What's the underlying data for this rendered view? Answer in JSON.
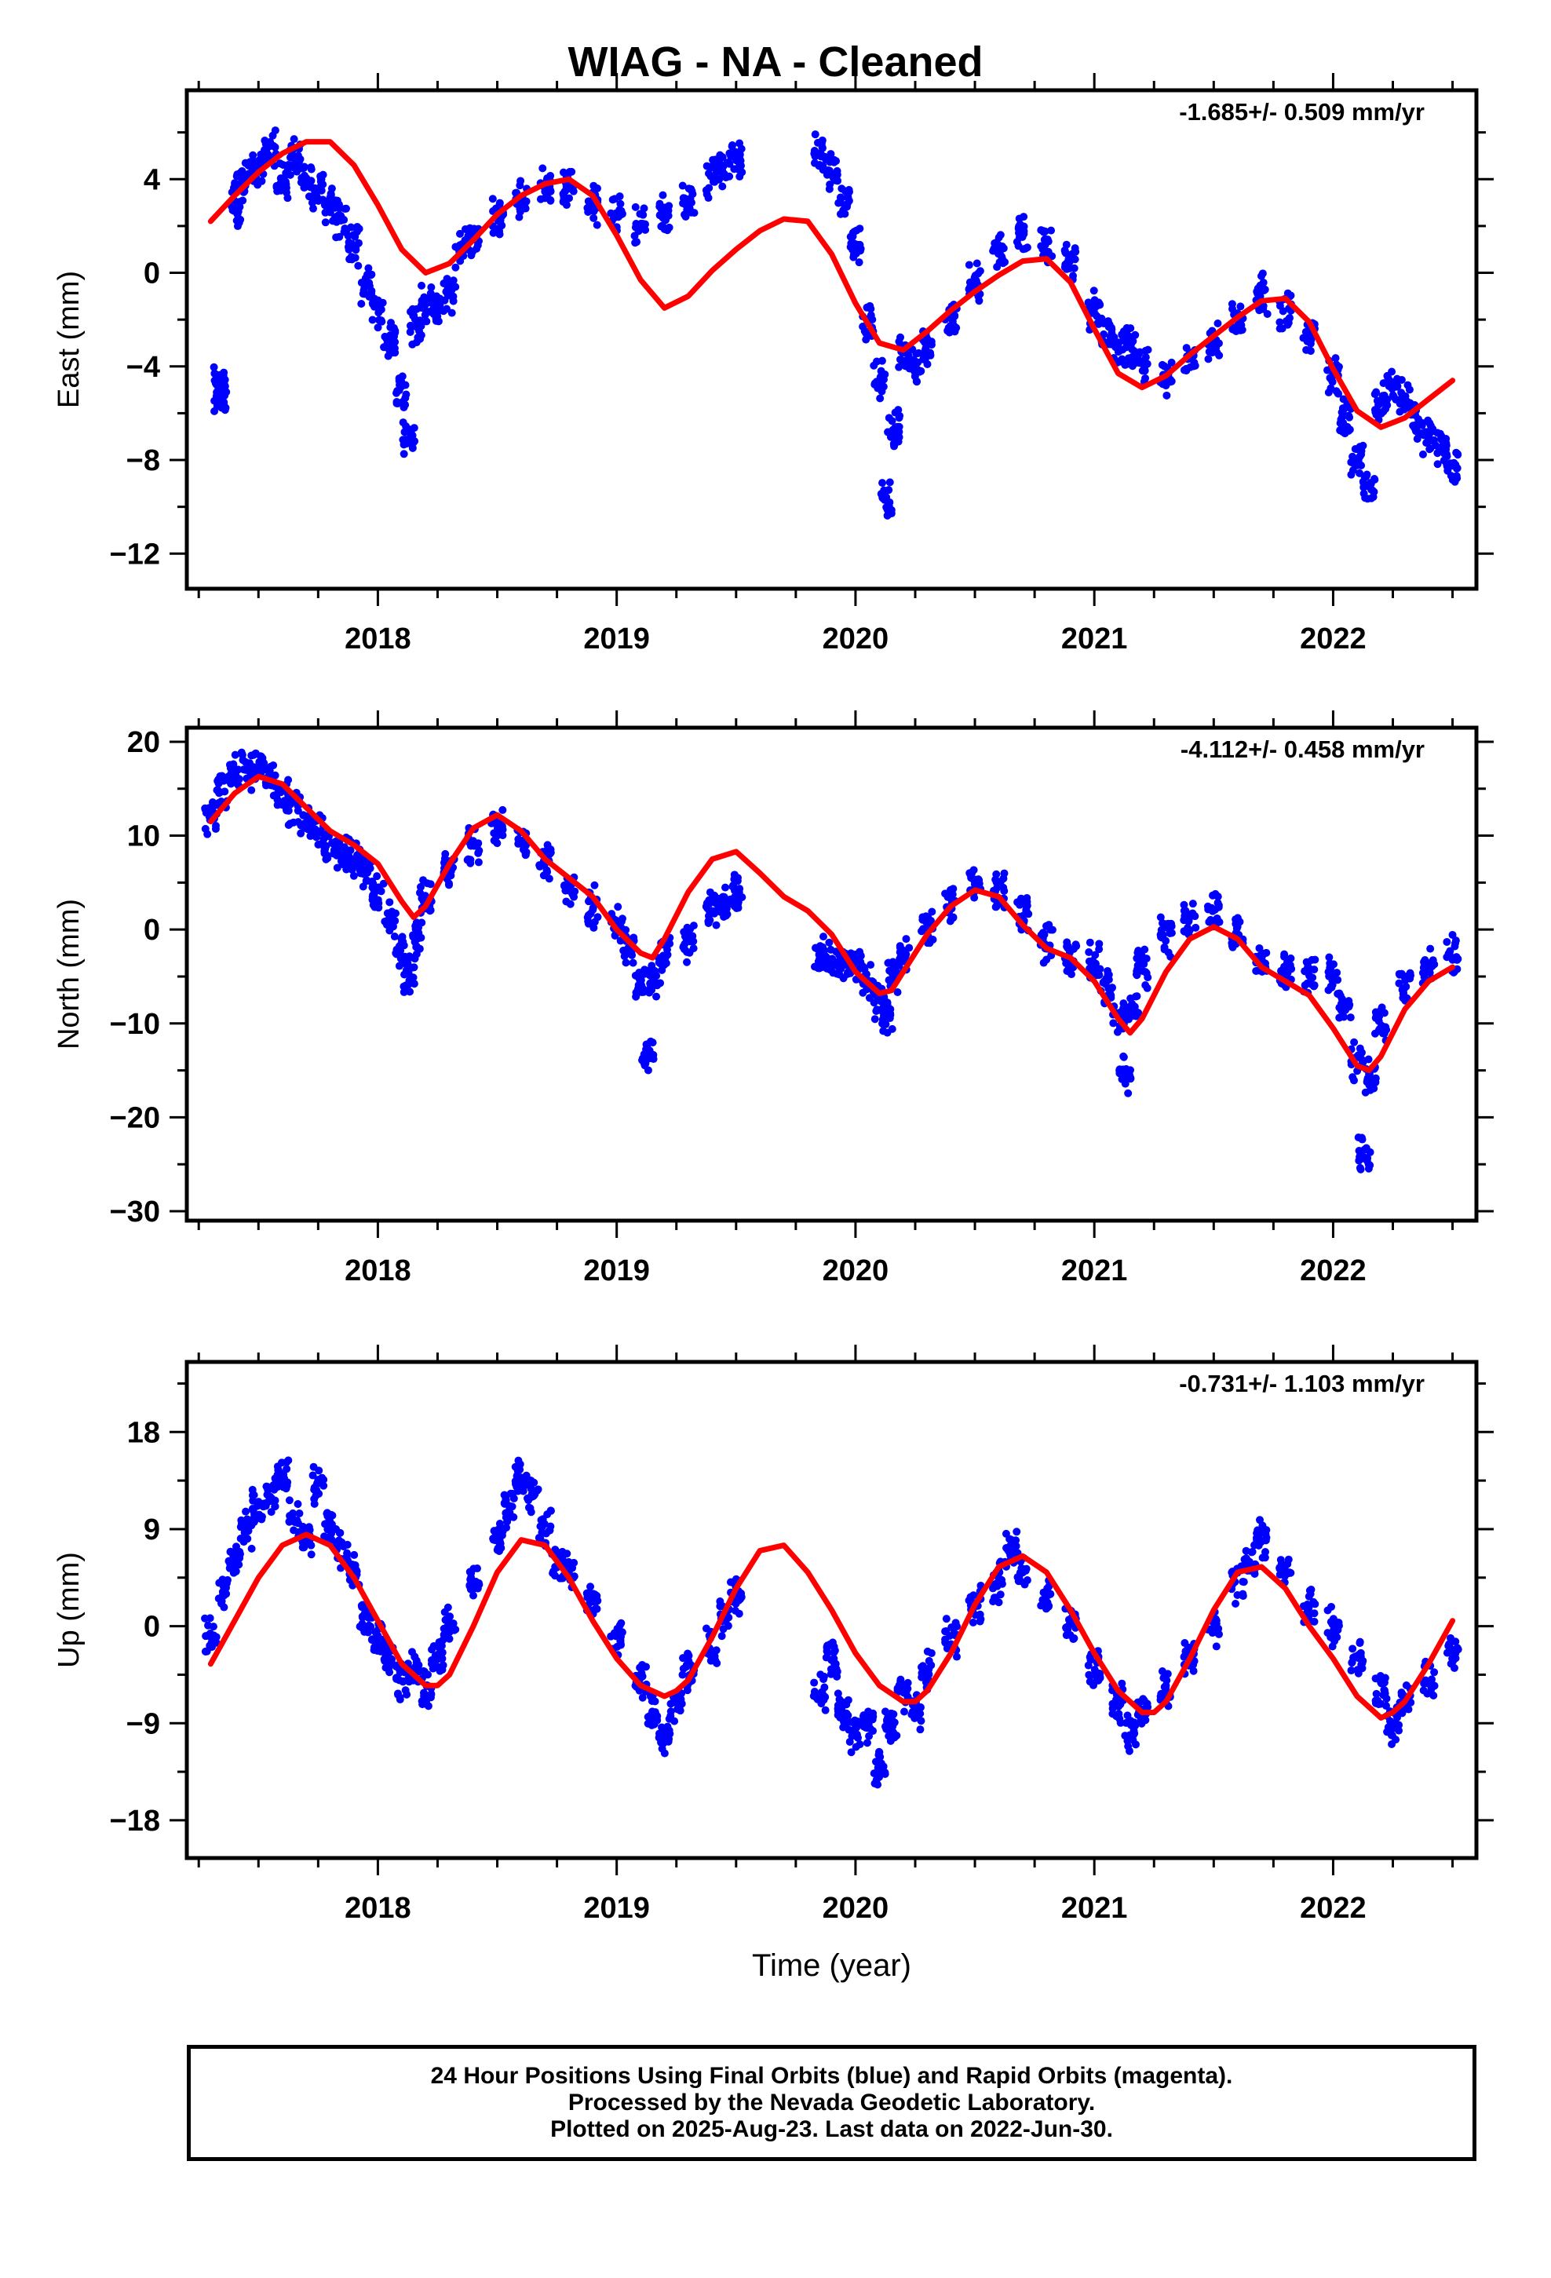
{
  "title": "WIAG  - NA - Cleaned",
  "footer": {
    "line1": "24 Hour Positions Using Final Orbits (blue) and Rapid Orbits (magenta).",
    "line2": "Processed by the Nevada Geodetic Laboratory.",
    "line3": "Plotted on 2025-Aug-23. Last data on 2022-Jun-30."
  },
  "colors": {
    "points": "#0000ff",
    "fit": "#ff0000",
    "axes": "#000000"
  },
  "chart_data": [
    {
      "type": "scatter",
      "title": "",
      "xlabel": "",
      "ylabel": "East (mm)",
      "annotation": "-1.685+/- 0.509 mm/yr",
      "xlim": [
        2017.2,
        2022.6
      ],
      "ylim": [
        -13.5,
        7.8
      ],
      "xticks": [
        2018,
        2019,
        2020,
        2021,
        2022
      ],
      "yticks": [
        4,
        0,
        -4,
        -8,
        -12
      ],
      "series": [
        {
          "kind": "points",
          "x": [
            2017.33,
            2017.34,
            2017.35,
            2017.4,
            2017.42,
            2017.45,
            2017.5,
            2017.55,
            2017.6,
            2017.65,
            2017.7,
            2017.75,
            2017.8,
            2017.85,
            2017.9,
            2017.95,
            2018.0,
            2018.05,
            2018.1,
            2018.13,
            2018.16,
            2018.2,
            2018.25,
            2018.3,
            2018.35,
            2018.4,
            2018.5,
            2018.6,
            2018.7,
            2018.8,
            2018.9,
            2019.0,
            2019.1,
            2019.2,
            2019.3,
            2019.4,
            2019.45,
            2019.5,
            2019.85,
            2019.9,
            2019.95,
            2020.0,
            2020.05,
            2020.1,
            2020.13,
            2020.16,
            2020.2,
            2020.25,
            2020.3,
            2020.4,
            2020.5,
            2020.6,
            2020.7,
            2020.8,
            2020.9,
            2021.0,
            2021.05,
            2021.1,
            2021.15,
            2021.2,
            2021.3,
            2021.4,
            2021.5,
            2021.6,
            2021.7,
            2021.8,
            2021.9,
            2022.0,
            2022.05,
            2022.1,
            2022.15,
            2022.2,
            2022.25,
            2022.3,
            2022.35,
            2022.4,
            2022.45,
            2022.5
          ],
          "y": [
            -4.6,
            -5.5,
            -4.9,
            2.8,
            3.6,
            4.2,
            4.6,
            5.2,
            4.0,
            4.8,
            3.9,
            3.5,
            3.0,
            2.4,
            1.2,
            -0.6,
            -1.6,
            -2.8,
            -5.2,
            -6.9,
            -2.2,
            -1.3,
            -1.6,
            -0.9,
            1.0,
            1.6,
            2.4,
            3.2,
            3.7,
            3.6,
            2.9,
            2.7,
            2.0,
            2.6,
            3.0,
            4.1,
            4.3,
            5.0,
            5.0,
            4.3,
            3.0,
            1.2,
            -2.3,
            -4.6,
            -9.7,
            -6.7,
            -3.6,
            -3.8,
            -3.2,
            -1.9,
            -0.4,
            1.0,
            1.6,
            1.2,
            0.4,
            -1.6,
            -2.6,
            -3.1,
            -3.2,
            -3.8,
            -4.6,
            -3.6,
            -3.0,
            -1.9,
            -0.9,
            -1.6,
            -2.7,
            -4.4,
            -6.1,
            -8.1,
            -9.1,
            -5.5,
            -4.9,
            -5.4,
            -6.3,
            -7.0,
            -7.4,
            -8.2
          ]
        },
        {
          "kind": "line",
          "x": [
            2017.3,
            2017.4,
            2017.5,
            2017.6,
            2017.7,
            2017.8,
            2017.9,
            2018.0,
            2018.1,
            2018.2,
            2018.3,
            2018.4,
            2018.5,
            2018.6,
            2018.7,
            2018.8,
            2018.9,
            2019.0,
            2019.1,
            2019.2,
            2019.3,
            2019.4,
            2019.5,
            2019.6,
            2019.7,
            2019.8,
            2019.9,
            2020.0,
            2020.1,
            2020.2,
            2020.3,
            2020.4,
            2020.5,
            2020.6,
            2020.7,
            2020.8,
            2020.9,
            2021.0,
            2021.1,
            2021.2,
            2021.3,
            2021.4,
            2021.5,
            2021.6,
            2021.7,
            2021.8,
            2021.9,
            2022.0,
            2022.1,
            2022.2,
            2022.3,
            2022.4,
            2022.5
          ],
          "y": [
            2.2,
            3.3,
            4.3,
            5.1,
            5.6,
            5.6,
            4.6,
            2.9,
            1.0,
            0.0,
            0.4,
            1.4,
            2.5,
            3.3,
            3.8,
            4.0,
            3.3,
            1.6,
            -0.3,
            -1.5,
            -1.0,
            0.1,
            1.0,
            1.8,
            2.3,
            2.2,
            0.8,
            -1.3,
            -3.0,
            -3.3,
            -2.5,
            -1.6,
            -0.8,
            -0.1,
            0.5,
            0.6,
            -0.4,
            -2.4,
            -4.3,
            -4.9,
            -4.4,
            -3.5,
            -2.7,
            -1.9,
            -1.2,
            -1.1,
            -2.1,
            -4.1,
            -5.9,
            -6.6,
            -6.2,
            -5.4,
            -4.6
          ]
        }
      ]
    },
    {
      "type": "scatter",
      "title": "",
      "xlabel": "",
      "ylabel": "North (mm)",
      "annotation": "-4.112+/- 0.458 mm/yr",
      "xlim": [
        2017.2,
        2022.6
      ],
      "ylim": [
        -31,
        21.5
      ],
      "xticks": [
        2018,
        2019,
        2020,
        2021,
        2022
      ],
      "yticks": [
        20,
        10,
        0,
        -10,
        -20,
        -30
      ],
      "series": [
        {
          "kind": "points",
          "x": [
            2017.3,
            2017.35,
            2017.4,
            2017.45,
            2017.5,
            2017.55,
            2017.6,
            2017.65,
            2017.7,
            2017.75,
            2017.8,
            2017.85,
            2017.9,
            2017.95,
            2018.0,
            2018.05,
            2018.1,
            2018.13,
            2018.16,
            2018.2,
            2018.3,
            2018.4,
            2018.5,
            2018.6,
            2018.7,
            2018.8,
            2018.9,
            2019.0,
            2019.05,
            2019.1,
            2019.13,
            2019.16,
            2019.2,
            2019.3,
            2019.4,
            2019.45,
            2019.5,
            2019.85,
            2019.9,
            2019.95,
            2020.0,
            2020.05,
            2020.1,
            2020.13,
            2020.16,
            2020.2,
            2020.3,
            2020.4,
            2020.5,
            2020.6,
            2020.7,
            2020.8,
            2020.9,
            2021.0,
            2021.05,
            2021.1,
            2021.13,
            2021.16,
            2021.2,
            2021.3,
            2021.4,
            2021.5,
            2021.6,
            2021.7,
            2021.8,
            2021.9,
            2022.0,
            2022.05,
            2022.1,
            2022.13,
            2022.16,
            2022.2,
            2022.3,
            2022.4,
            2022.5
          ],
          "y": [
            12.0,
            14.5,
            16.5,
            17.0,
            17.5,
            16.0,
            14.5,
            13.0,
            11.5,
            10.5,
            9.0,
            8.0,
            7.5,
            6.5,
            4.0,
            1.0,
            -2.0,
            -5.0,
            -1.0,
            3.0,
            6.5,
            9.0,
            11.0,
            10.0,
            7.0,
            4.5,
            2.5,
            0.5,
            -2.0,
            -6.0,
            -13.0,
            -5.0,
            -2.5,
            -1.5,
            2.0,
            3.0,
            4.0,
            -3.0,
            -3.5,
            -4.0,
            -3.5,
            -5.0,
            -7.5,
            -9.5,
            -5.0,
            -3.0,
            0.0,
            2.5,
            4.5,
            4.0,
            1.5,
            -1.5,
            -2.5,
            -3.5,
            -6.0,
            -9.5,
            -15.5,
            -8.5,
            -4.0,
            -1.0,
            1.5,
            2.0,
            -0.5,
            -3.0,
            -4.5,
            -5.0,
            -5.0,
            -8.5,
            -14.0,
            -24.0,
            -16.0,
            -10.0,
            -6.0,
            -4.0,
            -2.5
          ]
        },
        {
          "kind": "line",
          "x": [
            2017.3,
            2017.4,
            2017.5,
            2017.6,
            2017.7,
            2017.8,
            2017.9,
            2018.0,
            2018.1,
            2018.15,
            2018.2,
            2018.3,
            2018.4,
            2018.5,
            2018.6,
            2018.7,
            2018.8,
            2018.9,
            2019.0,
            2019.1,
            2019.15,
            2019.2,
            2019.3,
            2019.4,
            2019.5,
            2019.6,
            2019.7,
            2019.8,
            2019.9,
            2020.0,
            2020.1,
            2020.15,
            2020.2,
            2020.3,
            2020.4,
            2020.5,
            2020.6,
            2020.7,
            2020.8,
            2020.9,
            2021.0,
            2021.1,
            2021.15,
            2021.2,
            2021.3,
            2021.4,
            2021.5,
            2021.6,
            2021.7,
            2021.8,
            2021.9,
            2022.0,
            2022.1,
            2022.15,
            2022.2,
            2022.3,
            2022.4,
            2022.5
          ],
          "y": [
            11.5,
            14.5,
            16.3,
            15.5,
            13.0,
            10.5,
            9.0,
            7.0,
            3.0,
            1.3,
            2.5,
            7.0,
            10.8,
            12.2,
            10.5,
            7.5,
            5.5,
            3.5,
            0.0,
            -2.5,
            -3.0,
            -1.0,
            4.0,
            7.5,
            8.3,
            6.0,
            3.5,
            2.0,
            -0.5,
            -4.5,
            -6.8,
            -6.5,
            -4.5,
            -0.5,
            2.5,
            4.2,
            3.5,
            0.5,
            -2.0,
            -3.0,
            -5.5,
            -9.5,
            -11.0,
            -9.5,
            -4.5,
            -1.0,
            0.3,
            -1.0,
            -4.0,
            -5.5,
            -7.0,
            -10.5,
            -14.5,
            -15.0,
            -13.5,
            -8.5,
            -5.5,
            -4.0
          ]
        }
      ]
    },
    {
      "type": "scatter",
      "title": "",
      "xlabel": "Time (year)",
      "ylabel": "Up (mm)",
      "annotation": "-0.731+/- 1.103 mm/yr",
      "xlim": [
        2017.2,
        2022.6
      ],
      "ylim": [
        -21.5,
        24.5
      ],
      "xticks": [
        2018,
        2019,
        2020,
        2021,
        2022
      ],
      "yticks": [
        18,
        9,
        0,
        -9,
        -18
      ],
      "series": [
        {
          "kind": "points",
          "x": [
            2017.3,
            2017.35,
            2017.4,
            2017.45,
            2017.5,
            2017.55,
            2017.6,
            2017.65,
            2017.7,
            2017.75,
            2017.8,
            2017.85,
            2017.9,
            2017.95,
            2018.0,
            2018.05,
            2018.1,
            2018.15,
            2018.2,
            2018.25,
            2018.3,
            2018.4,
            2018.5,
            2018.55,
            2018.6,
            2018.65,
            2018.7,
            2018.75,
            2018.8,
            2018.9,
            2019.0,
            2019.1,
            2019.15,
            2019.2,
            2019.25,
            2019.3,
            2019.4,
            2019.45,
            2019.5,
            2019.85,
            2019.9,
            2019.95,
            2020.0,
            2020.05,
            2020.1,
            2020.15,
            2020.2,
            2020.25,
            2020.3,
            2020.4,
            2020.5,
            2020.6,
            2020.65,
            2020.7,
            2020.8,
            2020.9,
            2021.0,
            2021.1,
            2021.15,
            2021.2,
            2021.3,
            2021.4,
            2021.5,
            2021.6,
            2021.65,
            2021.7,
            2021.8,
            2021.9,
            2022.0,
            2022.1,
            2022.2,
            2022.25,
            2022.3,
            2022.4,
            2022.5
          ],
          "y": [
            -1.0,
            3.0,
            6.0,
            9.0,
            11.0,
            12.0,
            14.0,
            10.0,
            8.0,
            13.0,
            9.0,
            7.0,
            5.0,
            1.0,
            -1.0,
            -3.0,
            -5.0,
            -4.0,
            -6.0,
            -3.0,
            0.0,
            4.0,
            8.0,
            11.0,
            14.0,
            12.0,
            9.0,
            6.0,
            5.0,
            2.0,
            -1.0,
            -5.0,
            -8.0,
            -10.0,
            -7.0,
            -4.0,
            -2.0,
            1.0,
            3.0,
            -6.0,
            -3.0,
            -8.0,
            -10.0,
            -9.0,
            -13.0,
            -9.0,
            -6.0,
            -8.0,
            -4.0,
            -1.0,
            2.0,
            4.0,
            7.0,
            5.0,
            3.0,
            0.0,
            -4.0,
            -7.0,
            -10.0,
            -8.0,
            -6.0,
            -3.0,
            0.0,
            4.0,
            6.0,
            8.0,
            5.0,
            2.0,
            0.0,
            -3.0,
            -6.0,
            -9.0,
            -7.0,
            -5.0,
            -2.0
          ]
        },
        {
          "kind": "line",
          "x": [
            2017.3,
            2017.4,
            2017.5,
            2017.6,
            2017.7,
            2017.8,
            2017.9,
            2018.0,
            2018.1,
            2018.2,
            2018.25,
            2018.3,
            2018.4,
            2018.5,
            2018.6,
            2018.7,
            2018.8,
            2018.9,
            2019.0,
            2019.1,
            2019.2,
            2019.25,
            2019.3,
            2019.4,
            2019.5,
            2019.6,
            2019.7,
            2019.8,
            2019.9,
            2020.0,
            2020.1,
            2020.2,
            2020.25,
            2020.3,
            2020.4,
            2020.5,
            2020.6,
            2020.7,
            2020.8,
            2020.9,
            2021.0,
            2021.1,
            2021.2,
            2021.25,
            2021.3,
            2021.4,
            2021.5,
            2021.6,
            2021.7,
            2021.8,
            2021.9,
            2022.0,
            2022.1,
            2022.2,
            2022.25,
            2022.3,
            2022.4,
            2022.5
          ],
          "y": [
            -3.5,
            0.5,
            4.5,
            7.5,
            8.5,
            7.5,
            4.5,
            0.5,
            -3.5,
            -5.5,
            -5.5,
            -4.5,
            0.0,
            5.0,
            8.0,
            7.5,
            4.5,
            0.5,
            -3.0,
            -5.5,
            -6.5,
            -6.0,
            -5.0,
            -1.0,
            3.5,
            7.0,
            7.5,
            5.0,
            1.5,
            -2.5,
            -5.5,
            -7.0,
            -7.0,
            -6.0,
            -2.5,
            2.0,
            5.5,
            6.5,
            5.0,
            1.5,
            -2.5,
            -6.0,
            -8.0,
            -8.0,
            -7.0,
            -3.0,
            1.5,
            5.0,
            5.5,
            3.5,
            0.0,
            -3.0,
            -6.5,
            -8.5,
            -8.0,
            -7.0,
            -3.5,
            0.5
          ]
        }
      ]
    }
  ]
}
